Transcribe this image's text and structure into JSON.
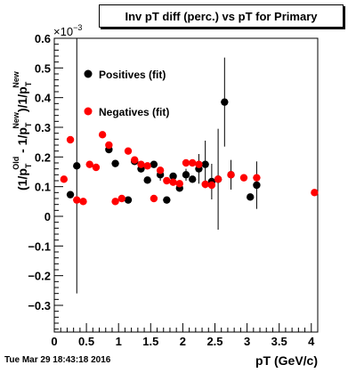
{
  "title": "Inv pT diff (perc.) vs pT for Primary",
  "timestamp": "Tue Mar 29 18:43:18 2016",
  "chart_data": {
    "type": "scatter",
    "title": "Inv pT diff (perc.) vs pT for Primary",
    "xlabel": "pT (GeV/c)",
    "ylabel_parts": {
      "open": "(1/p",
      "sub1": "T",
      "sup1": "Old",
      "mid": " - 1/p",
      "sub2": "T",
      "sup2": "New",
      "mid2": ")/1/p",
      "sub3": "T",
      "sup3": "New"
    },
    "y_exponent": "×10",
    "y_exponent_power": "−3",
    "xlim": [
      0,
      4.1
    ],
    "ylim": [
      -0.39,
      0.6
    ],
    "x_ticks": [
      "0",
      "0.5",
      "1",
      "1.5",
      "2",
      "2.5",
      "3",
      "3.5",
      "4"
    ],
    "y_ticks": [
      "−0.3",
      "−0.2",
      "−0.1",
      "0",
      "0.1",
      "0.2",
      "0.3",
      "0.4",
      "0.5",
      "0.6"
    ],
    "grid": false,
    "legend_position": "top-left",
    "series": [
      {
        "name": "Positives (fit)",
        "color": "#000000",
        "points": [
          {
            "x": 0.25,
            "y": 0.073,
            "err": 0.0
          },
          {
            "x": 0.35,
            "y": 0.17,
            "err": 0.43
          },
          {
            "x": 0.85,
            "y": 0.225,
            "err": 0.0
          },
          {
            "x": 0.95,
            "y": 0.178,
            "err": 0.0
          },
          {
            "x": 1.15,
            "y": 0.055,
            "err": 0.0
          },
          {
            "x": 1.25,
            "y": 0.185,
            "err": 0.0
          },
          {
            "x": 1.35,
            "y": 0.16,
            "err": 0.0
          },
          {
            "x": 1.45,
            "y": 0.122,
            "err": 0.0
          },
          {
            "x": 1.55,
            "y": 0.175,
            "err": 0.0
          },
          {
            "x": 1.65,
            "y": 0.14,
            "err": 0.02
          },
          {
            "x": 1.75,
            "y": 0.055,
            "err": 0.0
          },
          {
            "x": 1.85,
            "y": 0.135,
            "err": 0.0
          },
          {
            "x": 1.95,
            "y": 0.095,
            "err": 0.0
          },
          {
            "x": 2.05,
            "y": 0.14,
            "err": 0.02
          },
          {
            "x": 2.15,
            "y": 0.125,
            "err": 0.0
          },
          {
            "x": 2.25,
            "y": 0.16,
            "err": 0.05
          },
          {
            "x": 2.35,
            "y": 0.175,
            "err": 0.08
          },
          {
            "x": 2.45,
            "y": 0.117,
            "err": 0.06
          },
          {
            "x": 2.55,
            "y": 0.125,
            "err": 0.17
          },
          {
            "x": 2.65,
            "y": 0.385,
            "err": 0.15
          },
          {
            "x": 2.75,
            "y": 0.14,
            "err": 0.05
          },
          {
            "x": 3.05,
            "y": 0.065,
            "err": 0.0
          },
          {
            "x": 3.15,
            "y": 0.105,
            "err": 0.08
          }
        ]
      },
      {
        "name": "Negatives (fit)",
        "color": "#ff0000",
        "points": [
          {
            "x": 0.15,
            "y": 0.125,
            "err": 0.0
          },
          {
            "x": 0.25,
            "y": 0.258,
            "err": 0.0
          },
          {
            "x": 0.35,
            "y": 0.055,
            "err": 0.0
          },
          {
            "x": 0.45,
            "y": 0.05,
            "err": 0.0
          },
          {
            "x": 0.55,
            "y": 0.175,
            "err": 0.0
          },
          {
            "x": 0.65,
            "y": 0.165,
            "err": 0.0
          },
          {
            "x": 0.75,
            "y": 0.275,
            "err": 0.0
          },
          {
            "x": 0.85,
            "y": 0.24,
            "err": 0.0
          },
          {
            "x": 0.95,
            "y": 0.05,
            "err": 0.0
          },
          {
            "x": 1.05,
            "y": 0.06,
            "err": 0.0
          },
          {
            "x": 1.15,
            "y": 0.22,
            "err": 0.0
          },
          {
            "x": 1.25,
            "y": 0.19,
            "err": 0.0
          },
          {
            "x": 1.35,
            "y": 0.175,
            "err": 0.0
          },
          {
            "x": 1.45,
            "y": 0.17,
            "err": 0.0
          },
          {
            "x": 1.55,
            "y": 0.06,
            "err": 0.0
          },
          {
            "x": 1.65,
            "y": 0.155,
            "err": 0.0
          },
          {
            "x": 1.75,
            "y": 0.12,
            "err": 0.0
          },
          {
            "x": 1.85,
            "y": 0.115,
            "err": 0.0
          },
          {
            "x": 1.95,
            "y": 0.11,
            "err": 0.0
          },
          {
            "x": 2.05,
            "y": 0.18,
            "err": 0.0
          },
          {
            "x": 2.15,
            "y": 0.18,
            "err": 0.0
          },
          {
            "x": 2.25,
            "y": 0.175,
            "err": 0.0
          },
          {
            "x": 2.35,
            "y": 0.108,
            "err": 0.0
          },
          {
            "x": 2.45,
            "y": 0.105,
            "err": 0.0
          },
          {
            "x": 2.55,
            "y": 0.125,
            "err": 0.0
          },
          {
            "x": 2.75,
            "y": 0.14,
            "err": 0.0
          },
          {
            "x": 2.95,
            "y": 0.13,
            "err": 0.0
          },
          {
            "x": 3.15,
            "y": 0.13,
            "err": 0.0
          },
          {
            "x": 4.05,
            "y": 0.08,
            "err": 0.0
          }
        ]
      }
    ]
  }
}
